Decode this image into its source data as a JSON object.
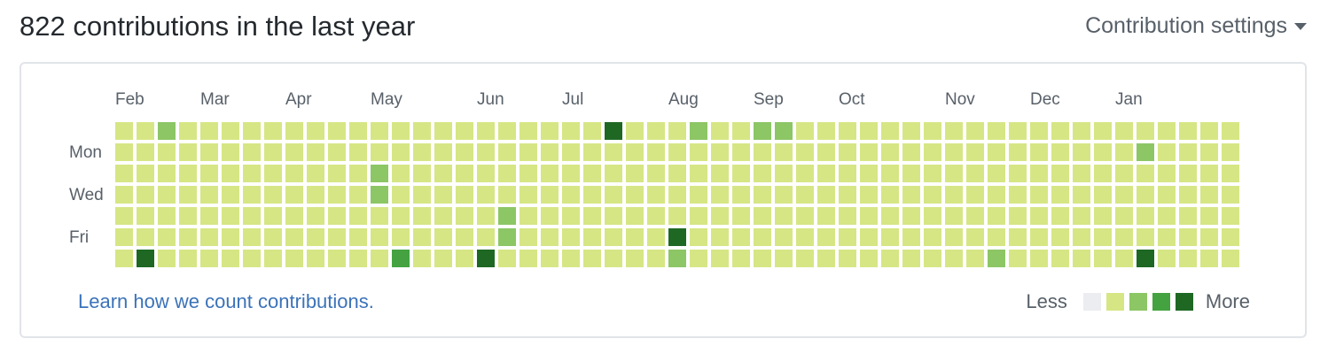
{
  "header": {
    "title": "822 contributions in the last year",
    "settings_label": "Contribution settings"
  },
  "graph": {
    "months": [
      {
        "label": "Feb",
        "week": 0
      },
      {
        "label": "Mar",
        "week": 4
      },
      {
        "label": "Apr",
        "week": 8
      },
      {
        "label": "May",
        "week": 12
      },
      {
        "label": "Jun",
        "week": 17
      },
      {
        "label": "Jul",
        "week": 21
      },
      {
        "label": "Aug",
        "week": 26
      },
      {
        "label": "Sep",
        "week": 30
      },
      {
        "label": "Oct",
        "week": 34
      },
      {
        "label": "Nov",
        "week": 39
      },
      {
        "label": "Dec",
        "week": 43
      },
      {
        "label": "Jan",
        "week": 47
      }
    ],
    "day_labels": [
      {
        "label": "Mon",
        "day": 1
      },
      {
        "label": "Wed",
        "day": 3
      },
      {
        "label": "Fri",
        "day": 5
      }
    ],
    "weeks": 53,
    "days": 7,
    "default_level": 1,
    "highlight_cells": [
      {
        "week": 2,
        "day": 0,
        "level": 2
      },
      {
        "week": 23,
        "day": 0,
        "level": 4
      },
      {
        "week": 27,
        "day": 0,
        "level": 2
      },
      {
        "week": 30,
        "day": 0,
        "level": 2
      },
      {
        "week": 31,
        "day": 0,
        "level": 2
      },
      {
        "week": 48,
        "day": 1,
        "level": 2
      },
      {
        "week": 12,
        "day": 2,
        "level": 2
      },
      {
        "week": 12,
        "day": 3,
        "level": 2
      },
      {
        "week": 18,
        "day": 4,
        "level": 2
      },
      {
        "week": 18,
        "day": 5,
        "level": 2
      },
      {
        "week": 26,
        "day": 5,
        "level": 4
      },
      {
        "week": 1,
        "day": 6,
        "level": 4
      },
      {
        "week": 13,
        "day": 6,
        "level": 3
      },
      {
        "week": 17,
        "day": 6,
        "level": 4
      },
      {
        "week": 26,
        "day": 6,
        "level": 2
      },
      {
        "week": 41,
        "day": 6,
        "level": 2
      },
      {
        "week": 48,
        "day": 6,
        "level": 4
      }
    ],
    "level_colors": [
      "#ebedf0",
      "#d6e685",
      "#8cc665",
      "#44a340",
      "#1e6823"
    ]
  },
  "footer": {
    "learn_link": "Learn how we count contributions.",
    "legend_less": "Less",
    "legend_more": "More"
  }
}
